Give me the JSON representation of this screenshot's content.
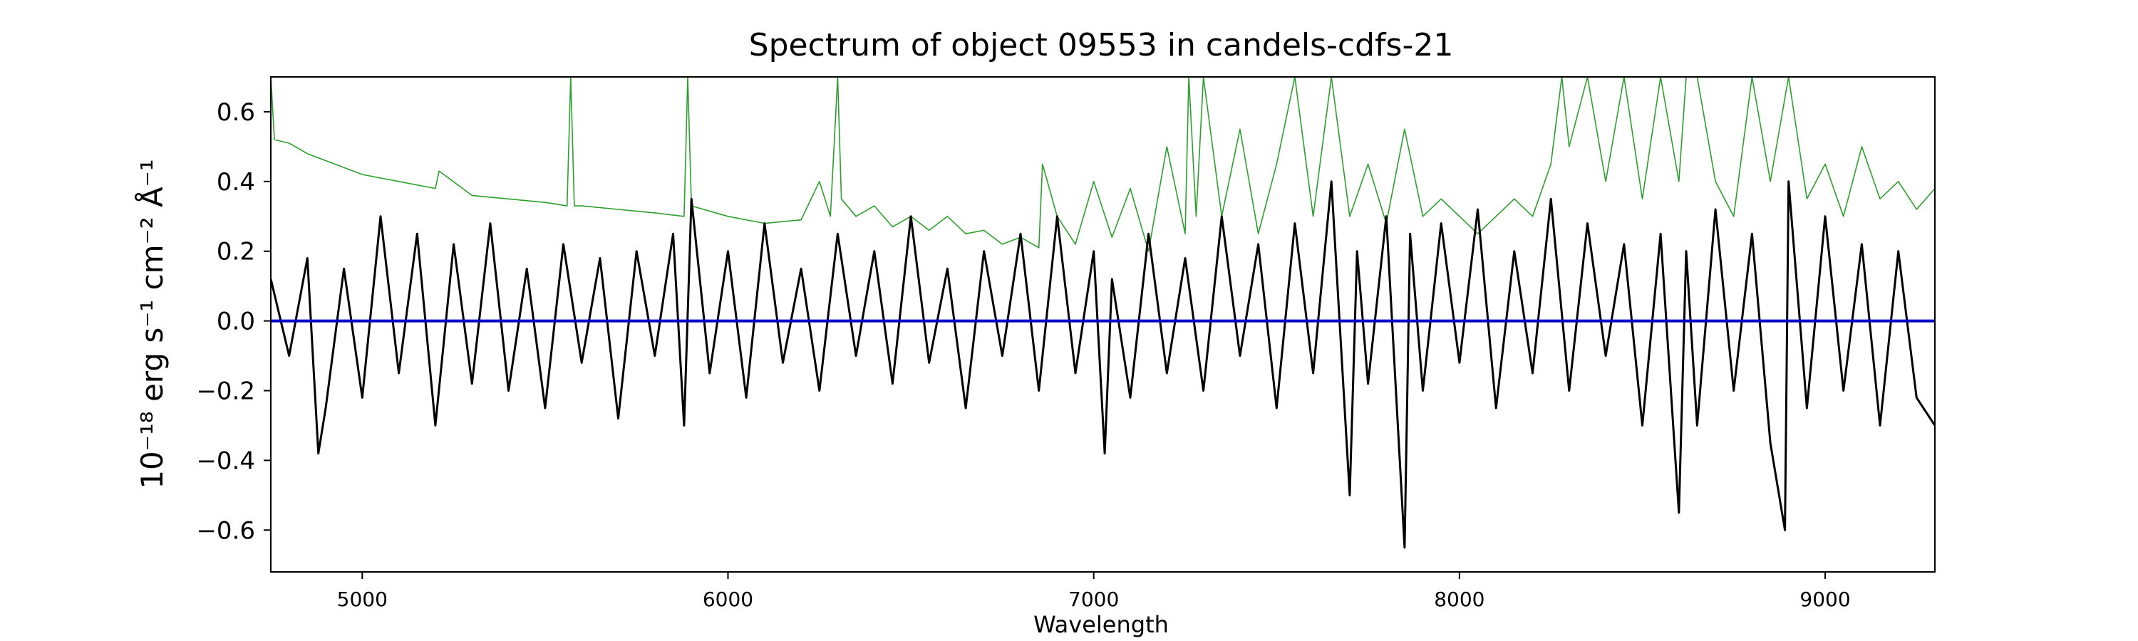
{
  "chart_data": {
    "type": "line",
    "title": "Spectrum of object 09553 in candels-cdfs-21",
    "xlabel": "Wavelength",
    "ylabel": "10⁻¹⁸ erg s⁻¹ cm⁻² Å⁻¹",
    "xlim": [
      4750,
      9300
    ],
    "ylim": [
      -0.72,
      0.7
    ],
    "xticks": [
      5000,
      6000,
      7000,
      8000,
      9000
    ],
    "yticks": [
      -0.6,
      -0.4,
      -0.2,
      0.0,
      0.2,
      0.4,
      0.6
    ],
    "grid": false,
    "legend": "none",
    "series": [
      {
        "role": "flux",
        "color": "#000000",
        "x": [
          4750,
          4800,
          4850,
          4880,
          4900,
          4950,
          5000,
          5050,
          5100,
          5150,
          5200,
          5250,
          5300,
          5350,
          5400,
          5450,
          5500,
          5550,
          5600,
          5650,
          5700,
          5750,
          5800,
          5850,
          5880,
          5900,
          5950,
          6000,
          6050,
          6100,
          6150,
          6200,
          6250,
          6300,
          6350,
          6400,
          6450,
          6500,
          6550,
          6600,
          6650,
          6700,
          6750,
          6800,
          6850,
          6900,
          6950,
          7000,
          7030,
          7050,
          7100,
          7150,
          7200,
          7250,
          7300,
          7350,
          7400,
          7450,
          7500,
          7550,
          7600,
          7650,
          7700,
          7720,
          7750,
          7800,
          7850,
          7865,
          7900,
          7950,
          8000,
          8050,
          8100,
          8150,
          8200,
          8250,
          8300,
          8350,
          8400,
          8450,
          8500,
          8550,
          8600,
          8620,
          8650,
          8700,
          8750,
          8800,
          8850,
          8890,
          8900,
          8950,
          9000,
          9050,
          9100,
          9150,
          9200,
          9250,
          9300
        ],
        "y": [
          0.12,
          -0.1,
          0.18,
          -0.38,
          -0.25,
          0.15,
          -0.22,
          0.3,
          -0.15,
          0.25,
          -0.3,
          0.22,
          -0.18,
          0.28,
          -0.2,
          0.15,
          -0.25,
          0.22,
          -0.12,
          0.18,
          -0.28,
          0.2,
          -0.1,
          0.25,
          -0.3,
          0.35,
          -0.15,
          0.2,
          -0.22,
          0.28,
          -0.12,
          0.15,
          -0.2,
          0.25,
          -0.1,
          0.2,
          -0.18,
          0.3,
          -0.12,
          0.15,
          -0.25,
          0.2,
          -0.1,
          0.25,
          -0.2,
          0.3,
          -0.15,
          0.2,
          -0.38,
          0.12,
          -0.22,
          0.25,
          -0.15,
          0.18,
          -0.2,
          0.3,
          -0.1,
          0.22,
          -0.25,
          0.28,
          -0.15,
          0.4,
          -0.5,
          0.2,
          -0.18,
          0.3,
          -0.65,
          0.25,
          -0.2,
          0.28,
          -0.12,
          0.32,
          -0.25,
          0.2,
          -0.15,
          0.35,
          -0.2,
          0.28,
          -0.1,
          0.22,
          -0.3,
          0.25,
          -0.55,
          0.2,
          -0.3,
          0.32,
          -0.2,
          0.25,
          -0.35,
          -0.6,
          0.4,
          -0.25,
          0.3,
          -0.2,
          0.22,
          -0.3,
          0.2,
          -0.22,
          -0.3
        ]
      },
      {
        "role": "error",
        "color": "#2ca02c",
        "x": [
          4750,
          4760,
          4800,
          4850,
          4900,
          4950,
          5000,
          5100,
          5200,
          5210,
          5300,
          5400,
          5500,
          5560,
          5570,
          5580,
          5600,
          5700,
          5800,
          5880,
          5890,
          5900,
          6000,
          6100,
          6200,
          6250,
          6280,
          6300,
          6310,
          6350,
          6400,
          6450,
          6500,
          6550,
          6600,
          6650,
          6700,
          6750,
          6800,
          6850,
          6860,
          6900,
          6950,
          7000,
          7050,
          7100,
          7150,
          7200,
          7250,
          7260,
          7280,
          7300,
          7350,
          7400,
          7450,
          7500,
          7550,
          7600,
          7650,
          7700,
          7750,
          7800,
          7850,
          7900,
          7950,
          8000,
          8050,
          8100,
          8150,
          8200,
          8250,
          8280,
          8300,
          8350,
          8400,
          8450,
          8500,
          8550,
          8600,
          8620,
          8650,
          8700,
          8750,
          8800,
          8850,
          8900,
          8950,
          9000,
          9050,
          9100,
          9150,
          9200,
          9250,
          9300
        ],
        "y": [
          0.7,
          0.52,
          0.51,
          0.48,
          0.46,
          0.44,
          0.42,
          0.4,
          0.38,
          0.43,
          0.36,
          0.35,
          0.34,
          0.33,
          0.7,
          0.33,
          0.33,
          0.32,
          0.31,
          0.3,
          0.7,
          0.33,
          0.3,
          0.28,
          0.29,
          0.4,
          0.3,
          0.7,
          0.35,
          0.3,
          0.33,
          0.27,
          0.3,
          0.26,
          0.3,
          0.25,
          0.26,
          0.22,
          0.24,
          0.21,
          0.45,
          0.3,
          0.22,
          0.4,
          0.24,
          0.38,
          0.2,
          0.5,
          0.25,
          0.7,
          0.3,
          0.7,
          0.3,
          0.55,
          0.25,
          0.45,
          0.7,
          0.3,
          0.7,
          0.3,
          0.45,
          0.28,
          0.55,
          0.3,
          0.35,
          0.3,
          0.25,
          0.3,
          0.35,
          0.3,
          0.45,
          0.7,
          0.5,
          0.7,
          0.4,
          0.7,
          0.35,
          0.7,
          0.4,
          0.7,
          0.7,
          0.4,
          0.3,
          0.7,
          0.4,
          0.7,
          0.35,
          0.45,
          0.3,
          0.5,
          0.35,
          0.4,
          0.32,
          0.38
        ]
      },
      {
        "role": "zero",
        "color": "#0000cc",
        "x": [
          4750,
          9300
        ],
        "y": [
          0.0,
          0.0
        ]
      }
    ]
  }
}
